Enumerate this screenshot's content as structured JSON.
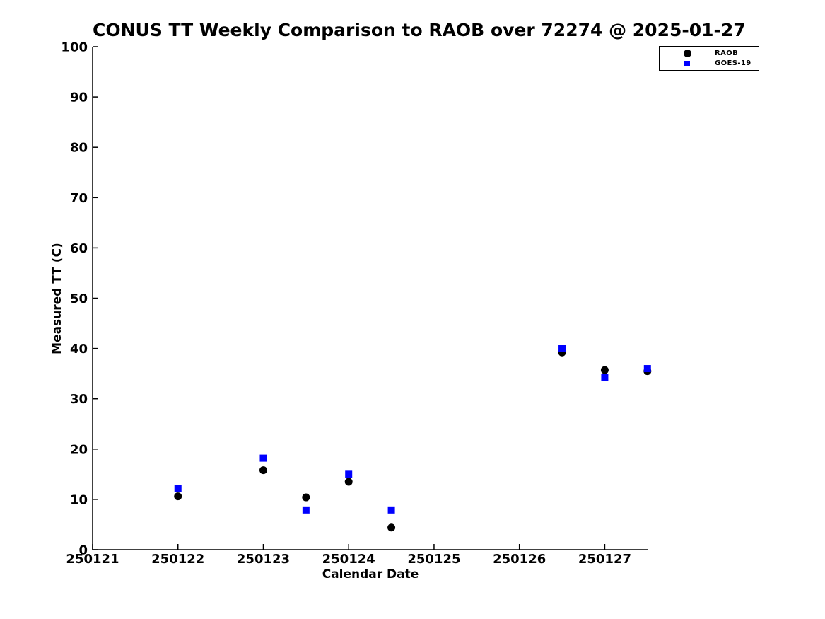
{
  "chart_data": {
    "type": "scatter",
    "title": "CONUS TT Weekly Comparison to RAOB over 72274 @ 2025-01-27",
    "xlabel": "Calendar Date",
    "ylabel": "Measured TT (C)",
    "xlim": [
      250121,
      250127.51
    ],
    "ylim": [
      0,
      100
    ],
    "x_ticks": [
      250121,
      250122,
      250123,
      250124,
      250125,
      250126,
      250127
    ],
    "y_ticks": [
      0,
      10,
      20,
      30,
      40,
      50,
      60,
      70,
      80,
      90,
      100
    ],
    "grid": false,
    "background_color": "#ffffff",
    "axis_color": "#000000",
    "legend": {
      "position": "top-right",
      "entries": [
        {
          "name": "RAOB",
          "marker": "circle",
          "color": "#000000"
        },
        {
          "name": "GOES-19",
          "marker": "square",
          "color": "#0000ff"
        }
      ]
    },
    "series": [
      {
        "name": "RAOB",
        "marker": "circle",
        "color": "#000000",
        "points": [
          [
            250122.0,
            10.6
          ],
          [
            250123.0,
            15.8
          ],
          [
            250123.5,
            10.4
          ],
          [
            250124.0,
            13.5
          ],
          [
            250124.5,
            4.4
          ],
          [
            250126.5,
            39.2
          ],
          [
            250127.0,
            35.7
          ],
          [
            250127.5,
            35.5
          ]
        ]
      },
      {
        "name": "GOES-19",
        "marker": "square",
        "color": "#0000ff",
        "points": [
          [
            250122.0,
            12.1
          ],
          [
            250123.0,
            18.2
          ],
          [
            250123.5,
            7.9
          ],
          [
            250124.0,
            15.0
          ],
          [
            250124.5,
            7.9
          ],
          [
            250126.5,
            40.0
          ],
          [
            250127.0,
            34.3
          ],
          [
            250127.5,
            36.0
          ]
        ]
      }
    ]
  }
}
